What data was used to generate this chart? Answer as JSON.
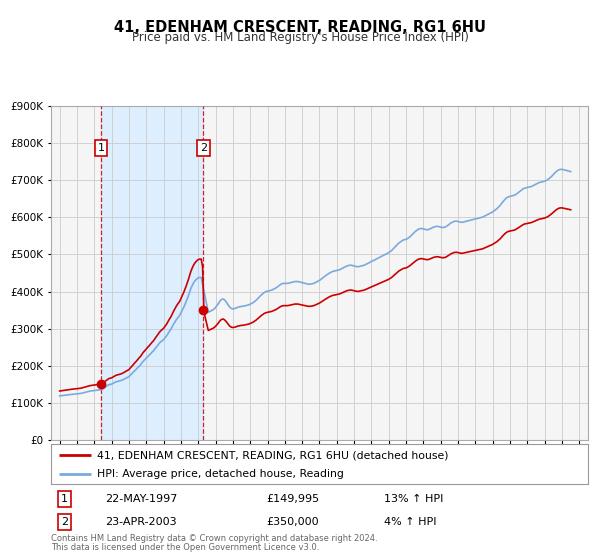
{
  "title": "41, EDENHAM CRESCENT, READING, RG1 6HU",
  "subtitle": "Price paid vs. HM Land Registry's House Price Index (HPI)",
  "legend_line1": "41, EDENHAM CRESCENT, READING, RG1 6HU (detached house)",
  "legend_line2": "HPI: Average price, detached house, Reading",
  "sale1_date": "22-MAY-1997",
  "sale1_price": "£149,995",
  "sale1_hpi": "13% ↑ HPI",
  "sale1_year": 1997.38,
  "sale1_value": 149995,
  "sale2_date": "23-APR-2003",
  "sale2_price": "£350,000",
  "sale2_hpi": "4% ↑ HPI",
  "sale2_year": 2003.3,
  "sale2_value": 350000,
  "footer_line1": "Contains HM Land Registry data © Crown copyright and database right 2024.",
  "footer_line2": "This data is licensed under the Open Government Licence v3.0.",
  "hpi_color": "#7aaadd",
  "price_color": "#cc0000",
  "bg_color": "#ffffff",
  "plot_bg_color": "#f5f5f5",
  "shade_color": "#ddeeff",
  "grid_color": "#cccccc",
  "ylim_min": 0,
  "ylim_max": 900000,
  "xlim_min": 1994.5,
  "xlim_max": 2025.5,
  "years_hpi": [
    1995.0,
    1995.08,
    1995.17,
    1995.25,
    1995.33,
    1995.42,
    1995.5,
    1995.58,
    1995.67,
    1995.75,
    1995.83,
    1995.92,
    1996.0,
    1996.08,
    1996.17,
    1996.25,
    1996.33,
    1996.42,
    1996.5,
    1996.58,
    1996.67,
    1996.75,
    1996.83,
    1996.92,
    1997.0,
    1997.08,
    1997.17,
    1997.25,
    1997.33,
    1997.42,
    1997.5,
    1997.58,
    1997.67,
    1997.75,
    1997.83,
    1997.92,
    1998.0,
    1998.08,
    1998.17,
    1998.25,
    1998.33,
    1998.42,
    1998.5,
    1998.58,
    1998.67,
    1998.75,
    1998.83,
    1998.92,
    1999.0,
    1999.08,
    1999.17,
    1999.25,
    1999.33,
    1999.42,
    1999.5,
    1999.58,
    1999.67,
    1999.75,
    1999.83,
    1999.92,
    2000.0,
    2000.08,
    2000.17,
    2000.25,
    2000.33,
    2000.42,
    2000.5,
    2000.58,
    2000.67,
    2000.75,
    2000.83,
    2000.92,
    2001.0,
    2001.08,
    2001.17,
    2001.25,
    2001.33,
    2001.42,
    2001.5,
    2001.58,
    2001.67,
    2001.75,
    2001.83,
    2001.92,
    2002.0,
    2002.08,
    2002.17,
    2002.25,
    2002.33,
    2002.42,
    2002.5,
    2002.58,
    2002.67,
    2002.75,
    2002.83,
    2002.92,
    2003.0,
    2003.08,
    2003.17,
    2003.25,
    2003.33,
    2003.42,
    2003.5,
    2003.58,
    2003.67,
    2003.75,
    2003.83,
    2003.92,
    2004.0,
    2004.08,
    2004.17,
    2004.25,
    2004.33,
    2004.42,
    2004.5,
    2004.58,
    2004.67,
    2004.75,
    2004.83,
    2004.92,
    2005.0,
    2005.08,
    2005.17,
    2005.25,
    2005.33,
    2005.42,
    2005.5,
    2005.58,
    2005.67,
    2005.75,
    2005.83,
    2005.92,
    2006.0,
    2006.08,
    2006.17,
    2006.25,
    2006.33,
    2006.42,
    2006.5,
    2006.58,
    2006.67,
    2006.75,
    2006.83,
    2006.92,
    2007.0,
    2007.08,
    2007.17,
    2007.25,
    2007.33,
    2007.42,
    2007.5,
    2007.58,
    2007.67,
    2007.75,
    2007.83,
    2007.92,
    2008.0,
    2008.08,
    2008.17,
    2008.25,
    2008.33,
    2008.42,
    2008.5,
    2008.58,
    2008.67,
    2008.75,
    2008.83,
    2008.92,
    2009.0,
    2009.08,
    2009.17,
    2009.25,
    2009.33,
    2009.42,
    2009.5,
    2009.58,
    2009.67,
    2009.75,
    2009.83,
    2009.92,
    2010.0,
    2010.08,
    2010.17,
    2010.25,
    2010.33,
    2010.42,
    2010.5,
    2010.58,
    2010.67,
    2010.75,
    2010.83,
    2010.92,
    2011.0,
    2011.08,
    2011.17,
    2011.25,
    2011.33,
    2011.42,
    2011.5,
    2011.58,
    2011.67,
    2011.75,
    2011.83,
    2011.92,
    2012.0,
    2012.08,
    2012.17,
    2012.25,
    2012.33,
    2012.42,
    2012.5,
    2012.58,
    2012.67,
    2012.75,
    2012.83,
    2012.92,
    2013.0,
    2013.08,
    2013.17,
    2013.25,
    2013.33,
    2013.42,
    2013.5,
    2013.58,
    2013.67,
    2013.75,
    2013.83,
    2013.92,
    2014.0,
    2014.08,
    2014.17,
    2014.25,
    2014.33,
    2014.42,
    2014.5,
    2014.58,
    2014.67,
    2014.75,
    2014.83,
    2014.92,
    2015.0,
    2015.08,
    2015.17,
    2015.25,
    2015.33,
    2015.42,
    2015.5,
    2015.58,
    2015.67,
    2015.75,
    2015.83,
    2015.92,
    2016.0,
    2016.08,
    2016.17,
    2016.25,
    2016.33,
    2016.42,
    2016.5,
    2016.58,
    2016.67,
    2016.75,
    2016.83,
    2016.92,
    2017.0,
    2017.08,
    2017.17,
    2017.25,
    2017.33,
    2017.42,
    2017.5,
    2017.58,
    2017.67,
    2017.75,
    2017.83,
    2017.92,
    2018.0,
    2018.08,
    2018.17,
    2018.25,
    2018.33,
    2018.42,
    2018.5,
    2018.58,
    2018.67,
    2018.75,
    2018.83,
    2018.92,
    2019.0,
    2019.08,
    2019.17,
    2019.25,
    2019.33,
    2019.42,
    2019.5,
    2019.58,
    2019.67,
    2019.75,
    2019.83,
    2019.92,
    2020.0,
    2020.08,
    2020.17,
    2020.25,
    2020.33,
    2020.42,
    2020.5,
    2020.58,
    2020.67,
    2020.75,
    2020.83,
    2020.92,
    2021.0,
    2021.08,
    2021.17,
    2021.25,
    2021.33,
    2021.42,
    2021.5,
    2021.58,
    2021.67,
    2021.75,
    2021.83,
    2021.92,
    2022.0,
    2022.08,
    2022.17,
    2022.25,
    2022.33,
    2022.42,
    2022.5,
    2022.58,
    2022.67,
    2022.75,
    2022.83,
    2022.92,
    2023.0,
    2023.08,
    2023.17,
    2023.25,
    2023.33,
    2023.42,
    2023.5,
    2023.58,
    2023.67,
    2023.75,
    2023.83,
    2023.92,
    2024.0,
    2024.08,
    2024.17,
    2024.25,
    2024.33,
    2024.42,
    2024.5
  ],
  "hpi_values_raw": [
    118000,
    118500,
    119000,
    119500,
    120000,
    120500,
    121000,
    121500,
    122000,
    122500,
    122800,
    123000,
    123500,
    124000,
    124500,
    125000,
    126000,
    127000,
    128000,
    129000,
    130000,
    131000,
    131500,
    132000,
    132500,
    133000,
    133500,
    134000,
    134500,
    135000,
    137000,
    140000,
    143000,
    146000,
    148000,
    149000,
    150000,
    152000,
    154000,
    156000,
    157000,
    158000,
    159000,
    160000,
    162000,
    164000,
    166000,
    168000,
    170000,
    174000,
    178000,
    182000,
    186000,
    190000,
    194000,
    198000,
    202000,
    207000,
    212000,
    216000,
    220000,
    224000,
    228000,
    232000,
    236000,
    240000,
    245000,
    250000,
    255000,
    260000,
    264000,
    267000,
    270000,
    275000,
    280000,
    286000,
    292000,
    298000,
    305000,
    312000,
    319000,
    325000,
    330000,
    335000,
    342000,
    350000,
    358000,
    367000,
    376000,
    387000,
    398000,
    409000,
    418000,
    425000,
    430000,
    434000,
    437000,
    438000,
    438000,
    438000,
    338000,
    340000,
    342000,
    344000,
    346000,
    348000,
    350000,
    353000,
    357000,
    362000,
    368000,
    374000,
    378000,
    380000,
    378000,
    374000,
    368000,
    362000,
    357000,
    354000,
    353000,
    354000,
    355000,
    357000,
    358000,
    359000,
    360000,
    360000,
    361000,
    362000,
    363000,
    364000,
    366000,
    368000,
    370000,
    373000,
    376000,
    380000,
    384000,
    388000,
    392000,
    395000,
    398000,
    400000,
    401000,
    402000,
    403000,
    404000,
    406000,
    408000,
    410000,
    413000,
    416000,
    419000,
    421000,
    422000,
    422000,
    422000,
    422000,
    423000,
    424000,
    425000,
    426000,
    427000,
    427000,
    427000,
    426000,
    425000,
    424000,
    423000,
    422000,
    421000,
    420000,
    420000,
    420000,
    421000,
    422000,
    424000,
    426000,
    428000,
    430000,
    433000,
    436000,
    439000,
    442000,
    445000,
    448000,
    450000,
    452000,
    454000,
    455000,
    456000,
    457000,
    458000,
    459000,
    461000,
    463000,
    465000,
    467000,
    469000,
    470000,
    471000,
    471000,
    470000,
    469000,
    468000,
    467000,
    467000,
    468000,
    469000,
    470000,
    471000,
    473000,
    475000,
    477000,
    479000,
    481000,
    483000,
    485000,
    487000,
    489000,
    491000,
    493000,
    495000,
    497000,
    499000,
    501000,
    503000,
    505000,
    508000,
    511000,
    515000,
    519000,
    523000,
    527000,
    531000,
    534000,
    537000,
    539000,
    540000,
    541000,
    543000,
    546000,
    549000,
    553000,
    557000,
    561000,
    564000,
    567000,
    569000,
    570000,
    570000,
    569000,
    568000,
    567000,
    567000,
    568000,
    570000,
    572000,
    574000,
    575000,
    576000,
    576000,
    575000,
    574000,
    573000,
    573000,
    574000,
    576000,
    579000,
    582000,
    585000,
    587000,
    589000,
    590000,
    590000,
    589000,
    588000,
    587000,
    587000,
    588000,
    589000,
    590000,
    591000,
    592000,
    593000,
    594000,
    595000,
    596000,
    597000,
    598000,
    599000,
    600000,
    601000,
    603000,
    605000,
    607000,
    609000,
    611000,
    613000,
    615000,
    618000,
    621000,
    624000,
    628000,
    632000,
    637000,
    642000,
    647000,
    651000,
    654000,
    656000,
    657000,
    658000,
    659000,
    660000,
    662000,
    665000,
    668000,
    671000,
    674000,
    677000,
    679000,
    680000,
    681000,
    682000,
    683000,
    684000,
    686000,
    688000,
    690000,
    692000,
    694000,
    695000,
    696000,
    697000,
    698000,
    700000,
    702000,
    705000,
    708000,
    712000,
    716000,
    720000,
    724000,
    727000,
    729000,
    730000,
    730000,
    729000,
    728000,
    727000,
    726000,
    725000,
    724000,
    723000,
    721000,
    719000,
    717000,
    715000,
    713000,
    711000,
    709000,
    708000,
    708000,
    709000,
    710000,
    712000,
    714000,
    716000,
    718000,
    720000,
    721000,
    722000,
    722000,
    721000,
    720000,
    719000,
    719000
  ]
}
